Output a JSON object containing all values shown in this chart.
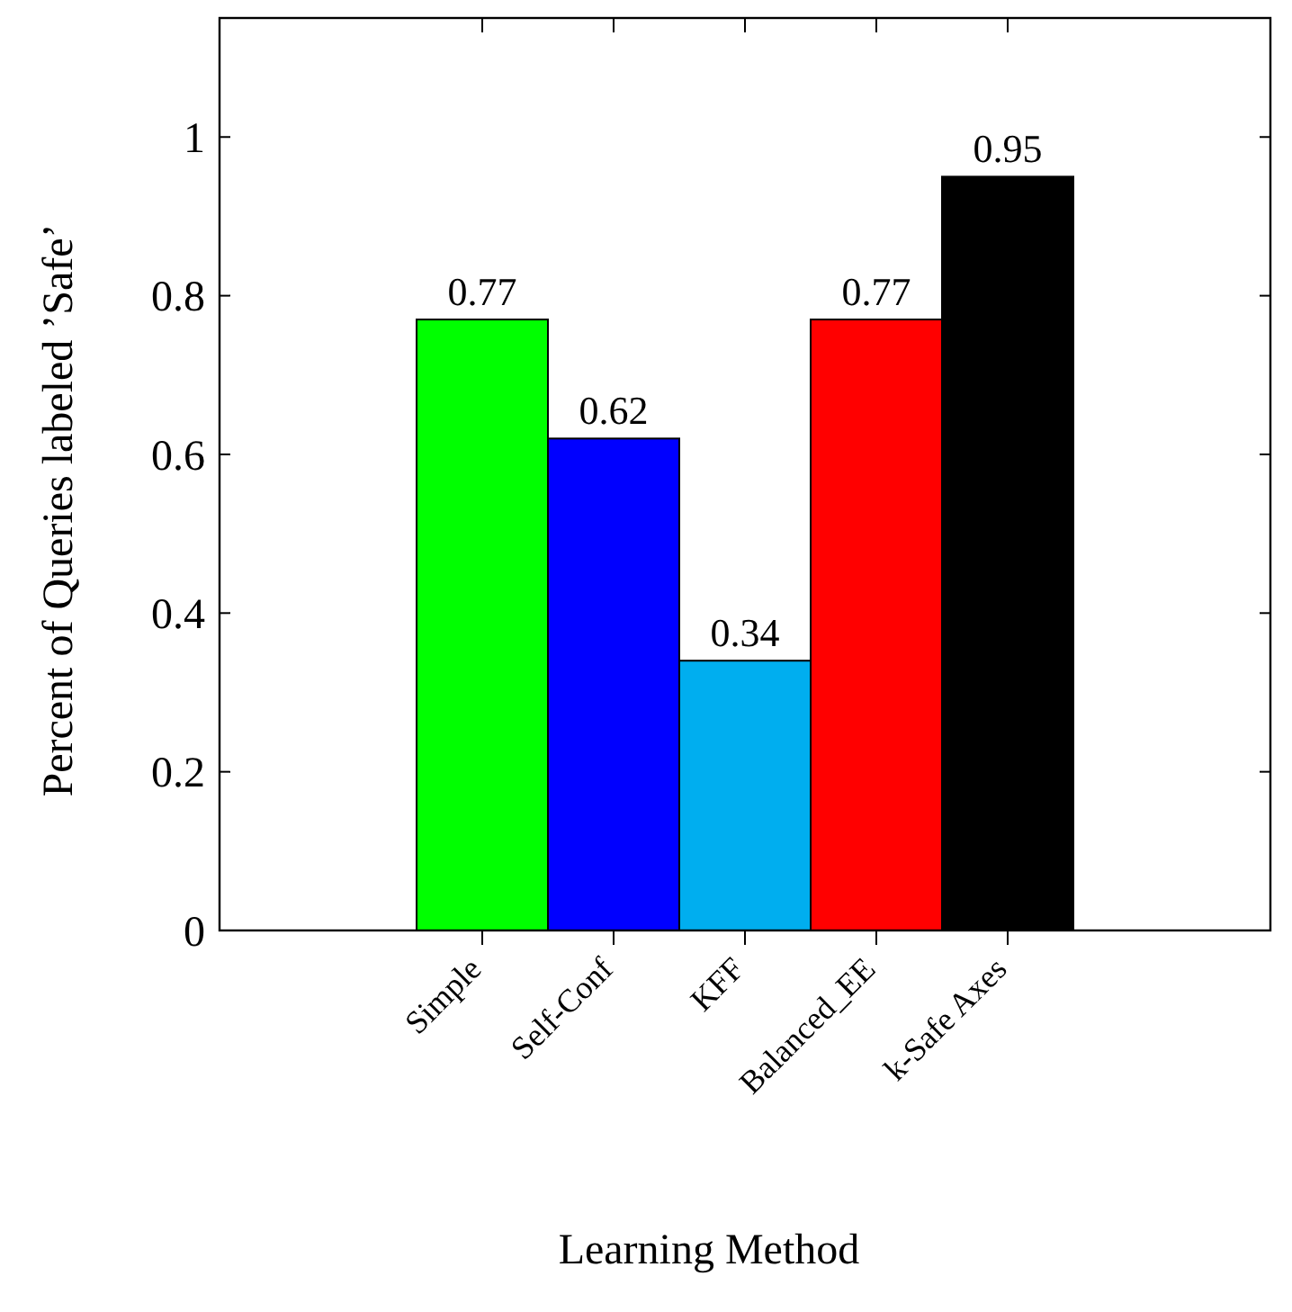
{
  "chart_data": {
    "type": "bar",
    "xlabel": "Learning Method",
    "ylabel": "Percent of Queries labeled ’Safe’",
    "categories": [
      "Simple",
      "Self-Conf",
      "KFF",
      "Balanced_EE",
      "k-Safe Axes"
    ],
    "values": [
      0.77,
      0.62,
      0.34,
      0.77,
      0.95
    ],
    "colors": [
      "#00ff00",
      "#0000ff",
      "#00aeef",
      "#ff0000",
      "#000000"
    ],
    "ylim": [
      0,
      1.15
    ],
    "yticks": [
      0,
      0.2,
      0.4,
      0.6,
      0.8,
      1
    ],
    "data_labels": true,
    "grid": false
  }
}
